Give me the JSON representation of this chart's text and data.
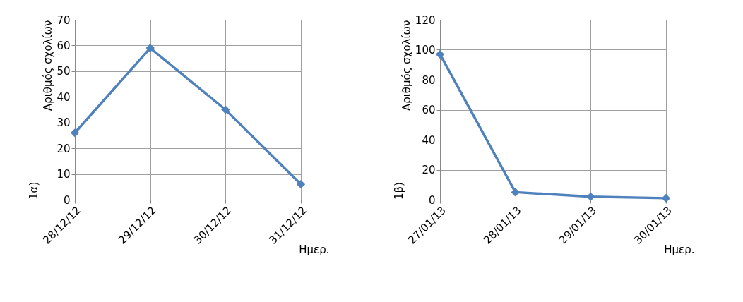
{
  "chart_data": [
    {
      "type": "line",
      "categories": [
        "28/12/12",
        "29/12/12",
        "30/12/12",
        "31/12/12"
      ],
      "xlabel": "Ημερ.",
      "ylabel": "Αριθμός σχολίων",
      "annotations": [
        "1α)"
      ],
      "series": [
        {
          "color": "#4f81bd",
          "values": [
            26,
            59,
            35,
            6
          ]
        }
      ],
      "ylim": [
        0,
        70
      ],
      "yticks": [
        0,
        10,
        20,
        30,
        40,
        50,
        60,
        70
      ],
      "grid": true,
      "marker": "diamond",
      "line_style": "solid"
    },
    {
      "type": "line",
      "categories": [
        "27/01/13",
        "28/01/13",
        "29/01/13",
        "30/01/13"
      ],
      "xlabel": "Ημερ.",
      "ylabel": "Αριθμός σχολίων",
      "annotations": [
        "1β)"
      ],
      "series": [
        {
          "color": "#4f81bd",
          "values": [
            97,
            5,
            2,
            1
          ]
        }
      ],
      "ylim": [
        0,
        120
      ],
      "yticks": [
        0,
        20,
        40,
        60,
        80,
        100,
        120
      ],
      "grid": true,
      "marker": "diamond",
      "line_style": "solid"
    }
  ]
}
